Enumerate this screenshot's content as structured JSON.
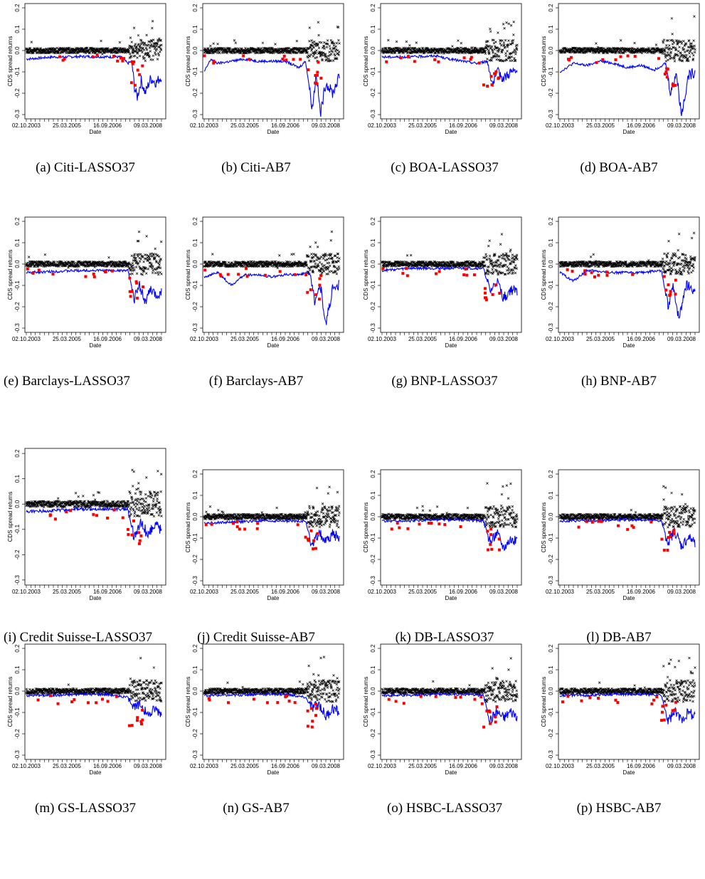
{
  "figure": {
    "y_axis_label": "CDS spread returns",
    "x_axis_label": "Date",
    "y_ticks": [
      "0.2",
      "0.1",
      "0.0",
      "-0.1",
      "-0.2",
      "-0.3"
    ],
    "x_ticks": [
      "02.10.2003",
      "25.03.2005",
      "16.09.2006",
      "09.03.2008"
    ]
  },
  "chart_data": [
    {
      "type": "scatter",
      "caption": "(a) Citi-LASSO37",
      "ylim": [
        -0.32,
        0.22
      ],
      "xlim": [
        "2003-10-02",
        "2008-09-30"
      ],
      "series": [
        {
          "values_desc": "returns",
          "color": "#000000"
        },
        {
          "values_desc": "VaR",
          "color": "#0000ff"
        },
        {
          "values_desc": "exceedances",
          "color": "#ff0000"
        }
      ],
      "var_path": [
        [
          0.0,
          -0.04
        ],
        [
          0.1,
          -0.035
        ],
        [
          0.2,
          -0.03
        ],
        [
          0.3,
          -0.03
        ],
        [
          0.4,
          -0.028
        ],
        [
          0.5,
          -0.028
        ],
        [
          0.6,
          -0.03
        ],
        [
          0.7,
          -0.03
        ],
        [
          0.75,
          -0.06
        ],
        [
          0.78,
          -0.05
        ],
        [
          0.8,
          -0.17
        ],
        [
          0.82,
          -0.22
        ],
        [
          0.85,
          -0.14
        ],
        [
          0.88,
          -0.2
        ],
        [
          0.92,
          -0.13
        ],
        [
          0.96,
          -0.15
        ],
        [
          1.0,
          -0.12
        ]
      ]
    },
    {
      "type": "scatter",
      "caption": "(b) Citi-AB7",
      "ylim": [
        -0.32,
        0.22
      ],
      "xlim": [
        "2003-10-02",
        "2008-09-30"
      ],
      "var_path": [
        [
          0.0,
          -0.1
        ],
        [
          0.05,
          -0.04
        ],
        [
          0.1,
          -0.06
        ],
        [
          0.2,
          -0.05
        ],
        [
          0.3,
          -0.04
        ],
        [
          0.4,
          -0.05
        ],
        [
          0.5,
          -0.05
        ],
        [
          0.6,
          -0.05
        ],
        [
          0.7,
          -0.08
        ],
        [
          0.75,
          -0.05
        ],
        [
          0.8,
          -0.27
        ],
        [
          0.83,
          -0.1
        ],
        [
          0.86,
          -0.3
        ],
        [
          0.9,
          -0.15
        ],
        [
          0.95,
          -0.2
        ],
        [
          1.0,
          -0.12
        ]
      ]
    },
    {
      "type": "scatter",
      "caption": "(c) BOA-LASSO37",
      "ylim": [
        -0.32,
        0.22
      ],
      "xlim": [
        "2003-10-02",
        "2008-09-30"
      ],
      "var_path": [
        [
          0.0,
          -0.03
        ],
        [
          0.2,
          -0.03
        ],
        [
          0.4,
          -0.025
        ],
        [
          0.5,
          -0.04
        ],
        [
          0.6,
          -0.05
        ],
        [
          0.7,
          -0.06
        ],
        [
          0.78,
          -0.05
        ],
        [
          0.82,
          -0.16
        ],
        [
          0.86,
          -0.1
        ],
        [
          0.9,
          -0.13
        ],
        [
          0.95,
          -0.1
        ],
        [
          1.0,
          -0.1
        ]
      ]
    },
    {
      "type": "scatter",
      "caption": "(d) BOA-AB7",
      "ylim": [
        -0.32,
        0.22
      ],
      "xlim": [
        "2003-10-02",
        "2008-09-30"
      ],
      "var_path": [
        [
          0.0,
          -0.1
        ],
        [
          0.1,
          -0.06
        ],
        [
          0.2,
          -0.07
        ],
        [
          0.3,
          -0.05
        ],
        [
          0.4,
          -0.06
        ],
        [
          0.5,
          -0.08
        ],
        [
          0.6,
          -0.07
        ],
        [
          0.7,
          -0.09
        ],
        [
          0.78,
          -0.06
        ],
        [
          0.82,
          -0.2
        ],
        [
          0.86,
          -0.1
        ],
        [
          0.9,
          -0.3
        ],
        [
          0.95,
          -0.12
        ],
        [
          1.0,
          -0.1
        ]
      ]
    },
    {
      "type": "scatter",
      "caption": "(e) Barclays-LASSO37",
      "ylim": [
        -0.32,
        0.22
      ],
      "xlim": [
        "2003-10-02",
        "2008-09-30"
      ],
      "var_path": [
        [
          0.0,
          -0.04
        ],
        [
          0.2,
          -0.035
        ],
        [
          0.4,
          -0.03
        ],
        [
          0.6,
          -0.03
        ],
        [
          0.75,
          -0.03
        ],
        [
          0.8,
          -0.16
        ],
        [
          0.84,
          -0.1
        ],
        [
          0.88,
          -0.18
        ],
        [
          0.92,
          -0.12
        ],
        [
          0.96,
          -0.15
        ],
        [
          1.0,
          -0.13
        ]
      ]
    },
    {
      "type": "scatter",
      "caption": "(f) Barclays-AB7",
      "ylim": [
        -0.32,
        0.22
      ],
      "xlim": [
        "2003-10-02",
        "2008-09-30"
      ],
      "var_path": [
        [
          0.0,
          -0.06
        ],
        [
          0.1,
          -0.04
        ],
        [
          0.2,
          -0.1
        ],
        [
          0.3,
          -0.05
        ],
        [
          0.4,
          -0.05
        ],
        [
          0.5,
          -0.06
        ],
        [
          0.6,
          -0.05
        ],
        [
          0.7,
          -0.05
        ],
        [
          0.78,
          -0.04
        ],
        [
          0.82,
          -0.18
        ],
        [
          0.86,
          -0.1
        ],
        [
          0.9,
          -0.28
        ],
        [
          0.95,
          -0.12
        ],
        [
          1.0,
          -0.1
        ]
      ]
    },
    {
      "type": "scatter",
      "caption": "(g) BNP-LASSO37",
      "ylim": [
        -0.32,
        0.22
      ],
      "xlim": [
        "2003-10-02",
        "2008-09-30"
      ],
      "var_path": [
        [
          0.0,
          -0.03
        ],
        [
          0.2,
          -0.02
        ],
        [
          0.4,
          -0.02
        ],
        [
          0.6,
          -0.02
        ],
        [
          0.75,
          -0.02
        ],
        [
          0.8,
          -0.13
        ],
        [
          0.85,
          -0.08
        ],
        [
          0.9,
          -0.16
        ],
        [
          0.95,
          -0.12
        ],
        [
          1.0,
          -0.13
        ]
      ]
    },
    {
      "type": "scatter",
      "caption": "(h) BNP-AB7",
      "ylim": [
        -0.32,
        0.22
      ],
      "xlim": [
        "2003-10-02",
        "2008-09-30"
      ],
      "var_path": [
        [
          0.0,
          -0.04
        ],
        [
          0.1,
          -0.08
        ],
        [
          0.2,
          -0.03
        ],
        [
          0.4,
          -0.04
        ],
        [
          0.6,
          -0.04
        ],
        [
          0.75,
          -0.03
        ],
        [
          0.8,
          -0.2
        ],
        [
          0.84,
          -0.1
        ],
        [
          0.88,
          -0.26
        ],
        [
          0.93,
          -0.1
        ],
        [
          1.0,
          -0.12
        ]
      ]
    },
    {
      "type": "scatter",
      "caption": "(i) Credit Suisse-LASSO37",
      "ylim": [
        -0.32,
        0.22
      ],
      "xlim": [
        "2003-10-02",
        "2008-09-30"
      ],
      "var_path": [
        [
          0.0,
          -0.03
        ],
        [
          0.2,
          -0.025
        ],
        [
          0.4,
          -0.02
        ],
        [
          0.6,
          -0.02
        ],
        [
          0.75,
          -0.02
        ],
        [
          0.8,
          -0.14
        ],
        [
          0.85,
          -0.07
        ],
        [
          0.9,
          -0.12
        ],
        [
          0.95,
          -0.08
        ],
        [
          1.0,
          -0.1
        ]
      ]
    },
    {
      "type": "scatter",
      "caption": "(j) Credit Suisse-AB7",
      "ylim": [
        -0.32,
        0.22
      ],
      "xlim": [
        "2003-10-02",
        "2008-09-30"
      ],
      "var_path": [
        [
          0.0,
          -0.03
        ],
        [
          0.2,
          -0.025
        ],
        [
          0.4,
          -0.02
        ],
        [
          0.6,
          -0.02
        ],
        [
          0.75,
          -0.02
        ],
        [
          0.8,
          -0.14
        ],
        [
          0.85,
          -0.07
        ],
        [
          0.9,
          -0.12
        ],
        [
          0.95,
          -0.08
        ],
        [
          1.0,
          -0.1
        ]
      ]
    },
    {
      "type": "scatter",
      "caption": "(k) DB-LASSO37",
      "ylim": [
        -0.32,
        0.22
      ],
      "xlim": [
        "2003-10-02",
        "2008-09-30"
      ],
      "var_path": [
        [
          0.0,
          -0.02
        ],
        [
          0.2,
          -0.02
        ],
        [
          0.4,
          -0.015
        ],
        [
          0.6,
          -0.015
        ],
        [
          0.75,
          -0.02
        ],
        [
          0.8,
          -0.12
        ],
        [
          0.85,
          -0.07
        ],
        [
          0.9,
          -0.14
        ],
        [
          0.95,
          -0.1
        ],
        [
          1.0,
          -0.12
        ]
      ]
    },
    {
      "type": "scatter",
      "caption": "(l) DB-AB7",
      "ylim": [
        -0.32,
        0.22
      ],
      "xlim": [
        "2003-10-02",
        "2008-09-30"
      ],
      "var_path": [
        [
          0.0,
          -0.02
        ],
        [
          0.2,
          -0.02
        ],
        [
          0.4,
          -0.015
        ],
        [
          0.6,
          -0.015
        ],
        [
          0.75,
          -0.02
        ],
        [
          0.8,
          -0.12
        ],
        [
          0.85,
          -0.07
        ],
        [
          0.9,
          -0.14
        ],
        [
          0.95,
          -0.1
        ],
        [
          1.0,
          -0.12
        ]
      ]
    },
    {
      "type": "scatter",
      "caption": "(m) GS-LASSO37",
      "ylim": [
        -0.32,
        0.22
      ],
      "xlim": [
        "2003-10-02",
        "2008-09-30"
      ],
      "var_path": [
        [
          0.0,
          -0.02
        ],
        [
          0.2,
          -0.02
        ],
        [
          0.4,
          -0.015
        ],
        [
          0.6,
          -0.015
        ],
        [
          0.75,
          -0.03
        ],
        [
          0.8,
          -0.08
        ],
        [
          0.85,
          -0.06
        ],
        [
          0.9,
          -0.12
        ],
        [
          0.95,
          -0.08
        ],
        [
          1.0,
          -0.1
        ]
      ]
    },
    {
      "type": "scatter",
      "caption": "(n) GS-AB7",
      "ylim": [
        -0.32,
        0.22
      ],
      "xlim": [
        "2003-10-02",
        "2008-09-30"
      ],
      "var_path": [
        [
          0.0,
          -0.02
        ],
        [
          0.2,
          -0.02
        ],
        [
          0.4,
          -0.015
        ],
        [
          0.6,
          -0.015
        ],
        [
          0.75,
          -0.03
        ],
        [
          0.8,
          -0.08
        ],
        [
          0.85,
          -0.06
        ],
        [
          0.9,
          -0.12
        ],
        [
          0.95,
          -0.08
        ],
        [
          1.0,
          -0.1
        ]
      ]
    },
    {
      "type": "scatter",
      "caption": "(o) HSBC-LASSO37",
      "ylim": [
        -0.32,
        0.22
      ],
      "xlim": [
        "2003-10-02",
        "2008-09-30"
      ],
      "var_path": [
        [
          0.0,
          -0.02
        ],
        [
          0.2,
          -0.02
        ],
        [
          0.4,
          -0.015
        ],
        [
          0.6,
          -0.015
        ],
        [
          0.75,
          -0.02
        ],
        [
          0.8,
          -0.14
        ],
        [
          0.85,
          -0.1
        ],
        [
          0.9,
          -0.13
        ],
        [
          0.95,
          -0.1
        ],
        [
          1.0,
          -0.12
        ]
      ]
    },
    {
      "type": "scatter",
      "caption": "(p) HSBC-AB7",
      "ylim": [
        -0.32,
        0.22
      ],
      "xlim": [
        "2003-10-02",
        "2008-09-30"
      ],
      "var_path": [
        [
          0.0,
          -0.02
        ],
        [
          0.2,
          -0.02
        ],
        [
          0.4,
          -0.015
        ],
        [
          0.6,
          -0.015
        ],
        [
          0.75,
          -0.02
        ],
        [
          0.8,
          -0.14
        ],
        [
          0.85,
          -0.1
        ],
        [
          0.9,
          -0.13
        ],
        [
          0.95,
          -0.1
        ],
        [
          1.0,
          -0.12
        ]
      ]
    }
  ],
  "captions": [
    {
      "lead": "(a) Citi-LASSO37"
    },
    {
      "lead": "(b) Citi-AB7"
    },
    {
      "lead": "(c) BOA-LASSO37"
    },
    {
      "lead": "(d) BOA-AB7"
    },
    {
      "lead": "(e) Barclays-LASSO37"
    },
    {
      "lead": "(f) Barclays-AB7"
    },
    {
      "lead": "(g) BNP-LASSO37"
    },
    {
      "lead": "(h) BNP-AB7"
    },
    {
      "lead": "(i) Credit Suisse-LASSO37"
    },
    {
      "lead": "(j) Credit Suisse-AB7"
    },
    {
      "lead": "(k) DB-LASSO37"
    },
    {
      "lead": "(l) DB-AB7"
    },
    {
      "lead": "(m) GS-LASSO37"
    },
    {
      "lead": "(n) GS-AB7"
    },
    {
      "lead": "(o) HSBC-LASSO37"
    },
    {
      "lead": "(p) HSBC-AB7"
    }
  ],
  "colors": {
    "returns": "#000000",
    "var_line": "#0000ff",
    "exceedance": "#ff0000"
  }
}
